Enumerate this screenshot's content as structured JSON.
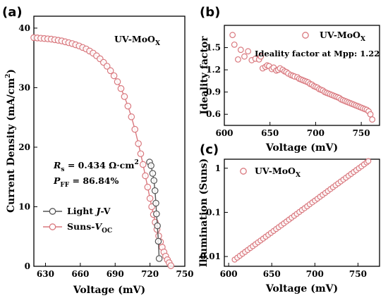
{
  "colors": {
    "suns": "#d9787e",
    "light": "#555555"
  },
  "chart_data": [
    {
      "type": "line",
      "panel": "(a)",
      "xlabel": "Voltage (mV)",
      "ylabel_main": "Current Density (mA/cm",
      "ylabel_sup": "2",
      "ylabel_end": ")",
      "xlim": [
        620,
        750
      ],
      "ylim": [
        0,
        42
      ],
      "xticks": [
        "630",
        "660",
        "690",
        "720",
        "750"
      ],
      "xtick_values": [
        630,
        660,
        690,
        720,
        750
      ],
      "yticks": [
        "0",
        "10",
        "20",
        "30",
        "40"
      ],
      "ytick_values": [
        0,
        10,
        20,
        30,
        40
      ],
      "sample_label": "UV-MoO",
      "sample_sub": "X",
      "annotation_rs_symbol": "R",
      "annotation_rs_sub": "s",
      "annotation_rs_value": " = 0.434 Ω·cm",
      "annotation_rs_sup": "2",
      "annotation_pff_symbol": "P",
      "annotation_pff_sub": "FF",
      "annotation_pff_value": " = 86.84%",
      "legend": [
        {
          "prefix": "Light ",
          "italic": "J",
          "suffix": "-V",
          "sub": ""
        },
        {
          "prefix": "Suns-",
          "italic": "V",
          "suffix": "",
          "sub": "OC"
        }
      ],
      "series": [
        {
          "name": "Light J-V",
          "color": "#555555",
          "x": [
            719.6,
            720.9,
            722.3,
            723.4,
            724.3,
            725.1,
            725.6,
            726.4,
            727.2,
            727.9
          ],
          "y": [
            17.5,
            16.9,
            15.6,
            14.4,
            12.7,
            10.6,
            8.8,
            6.8,
            4.2,
            1.3
          ]
        },
        {
          "name": "Suns-VOC",
          "color": "#d9787e",
          "x": [
            620,
            623,
            626,
            629,
            632,
            635,
            638,
            641,
            644,
            647,
            650,
            653,
            656,
            659,
            662,
            665,
            668,
            671,
            674,
            677,
            680,
            683,
            686,
            689,
            692,
            695,
            698,
            701,
            704,
            707,
            710,
            712,
            714,
            716,
            718,
            720,
            721.5,
            723,
            724.5,
            726,
            727.5,
            729,
            730.5,
            732,
            733.5,
            735,
            736.5,
            738
          ],
          "y": [
            38.4,
            38.35,
            38.3,
            38.25,
            38.2,
            38.15,
            38.05,
            37.95,
            37.85,
            37.7,
            37.55,
            37.4,
            37.2,
            37.0,
            36.75,
            36.5,
            36.15,
            35.8,
            35.35,
            34.85,
            34.25,
            33.6,
            32.85,
            32.0,
            31.0,
            29.85,
            28.5,
            26.9,
            25.1,
            23.0,
            20.6,
            18.9,
            17.1,
            15.2,
            13.3,
            11.4,
            10.0,
            8.7,
            7.4,
            6.2,
            5.1,
            4.1,
            3.2,
            2.4,
            1.7,
            1.1,
            0.6,
            0.1
          ]
        }
      ]
    },
    {
      "type": "scatter",
      "panel": "(b)",
      "xlabel": "Voltage (mV)",
      "ylabel": "Ideality factor",
      "xlim": [
        600,
        770
      ],
      "ylim": [
        0.45,
        1.8
      ],
      "xticks": [
        "600",
        "650",
        "700",
        "750"
      ],
      "xtick_values": [
        600,
        650,
        700,
        750
      ],
      "yticks": [
        "0.6",
        "0.9",
        "1.2",
        "1.5"
      ],
      "ytick_values": [
        0.6,
        0.9,
        1.2,
        1.5
      ],
      "legend_label": "UV-MoO",
      "legend_sub": "X",
      "annotation": "Ideality factor at Mpp: 1.22",
      "series": [
        {
          "name": "UV-MoOX",
          "color": "#d9787e",
          "x": [
            609,
            611,
            615,
            618,
            622,
            626,
            630,
            634,
            638,
            640,
            642,
            645,
            647,
            649,
            652,
            654,
            657,
            659,
            661,
            664,
            666,
            668,
            670,
            673,
            675,
            677,
            680,
            682,
            684,
            686,
            688,
            690,
            692,
            694,
            696,
            698,
            700,
            702,
            704,
            706,
            708,
            710,
            712,
            714,
            716,
            718,
            720,
            722,
            724,
            726,
            728,
            730,
            732,
            734,
            736,
            738,
            740,
            742,
            744,
            746,
            748,
            750,
            752,
            754,
            756,
            758,
            760,
            762
          ],
          "y": [
            1.67,
            1.54,
            1.34,
            1.47,
            1.38,
            1.45,
            1.33,
            1.35,
            1.34,
            1.38,
            1.22,
            1.24,
            1.26,
            1.25,
            1.21,
            1.23,
            1.19,
            1.2,
            1.22,
            1.2,
            1.18,
            1.17,
            1.15,
            1.13,
            1.12,
            1.11,
            1.1,
            1.08,
            1.07,
            1.06,
            1.05,
            1.04,
            1.03,
            1.01,
            1.0,
            0.98,
            0.97,
            0.96,
            0.94,
            0.93,
            0.92,
            0.9,
            0.89,
            0.88,
            0.87,
            0.86,
            0.85,
            0.84,
            0.83,
            0.82,
            0.8,
            0.79,
            0.78,
            0.77,
            0.76,
            0.75,
            0.74,
            0.73,
            0.72,
            0.71,
            0.7,
            0.69,
            0.68,
            0.67,
            0.66,
            0.64,
            0.6,
            0.53
          ]
        }
      ]
    },
    {
      "type": "scatter",
      "panel": "(c)",
      "xlabel": "Voltage (mV)",
      "ylabel": "Illumination (Suns)",
      "xlim": [
        595,
        775
      ],
      "ylim": [
        0.006,
        1.6
      ],
      "yscale": "log",
      "xticks": [
        "600",
        "650",
        "700",
        "750"
      ],
      "xtick_values": [
        600,
        650,
        700,
        750
      ],
      "yticks": [
        "0.01",
        "0.1",
        "1"
      ],
      "ytick_values": [
        0.01,
        0.1,
        1
      ],
      "legend_label": "UV-MoO",
      "legend_sub": "X",
      "series": [
        {
          "name": "UV-MoOX",
          "color": "#d9787e",
          "x": [
            607,
            610,
            613,
            616,
            619,
            622,
            625,
            628,
            631,
            634,
            637,
            640,
            643,
            646,
            649,
            652,
            655,
            658,
            661,
            664,
            667,
            670,
            673,
            676,
            679,
            682,
            685,
            688,
            691,
            694,
            697,
            700,
            703,
            706,
            709,
            712,
            715,
            718,
            721,
            724,
            727,
            730,
            733,
            736,
            739,
            742,
            745,
            748,
            751,
            754,
            757,
            760,
            762
          ],
          "y": [
            0.0085,
            0.0094,
            0.0104,
            0.0115,
            0.0127,
            0.014,
            0.0155,
            0.0171,
            0.0189,
            0.0209,
            0.023,
            0.0254,
            0.0281,
            0.031,
            0.0342,
            0.0378,
            0.0418,
            0.0461,
            0.0509,
            0.0562,
            0.062,
            0.0685,
            0.0757,
            0.0835,
            0.0922,
            0.102,
            0.113,
            0.124,
            0.137,
            0.152,
            0.168,
            0.185,
            0.204,
            0.226,
            0.249,
            0.275,
            0.304,
            0.336,
            0.371,
            0.41,
            0.452,
            0.5,
            0.552,
            0.609,
            0.673,
            0.743,
            0.82,
            0.906,
            1.0,
            1.1,
            1.22,
            1.35,
            1.45
          ]
        }
      ]
    }
  ]
}
